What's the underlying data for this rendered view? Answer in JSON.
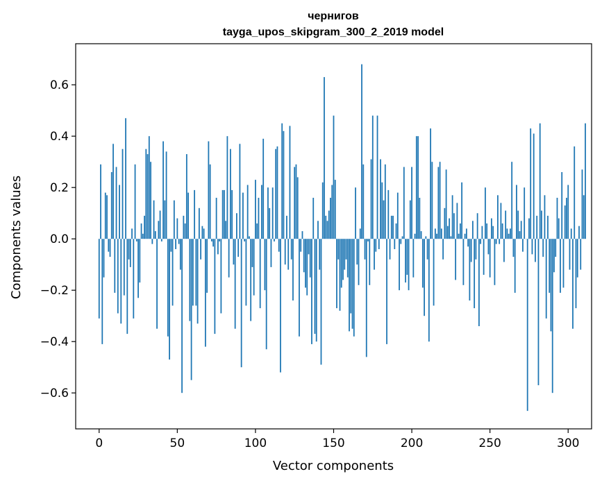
{
  "chart_data": {
    "type": "bar",
    "title": "чернигов",
    "subtitle": "tayga_upos_skipgram_300_2_2019 model",
    "xlabel": "Vector components",
    "ylabel": "Components values",
    "xlim": [
      -15,
      315
    ],
    "ylim": [
      -0.74,
      0.76
    ],
    "x_ticks": [
      0,
      50,
      100,
      150,
      200,
      250,
      300
    ],
    "y_ticks": [
      -0.6,
      -0.4,
      -0.2,
      0.0,
      0.2,
      0.4,
      0.6
    ],
    "y_tick_labels": [
      "−0.6",
      "−0.4",
      "−0.2",
      "0.0",
      "0.2",
      "0.4",
      "0.6"
    ],
    "grid": false,
    "bar_color": "#1f77b4",
    "values": [
      -0.31,
      0.29,
      -0.41,
      -0.15,
      0.18,
      0.17,
      -0.05,
      -0.07,
      0.26,
      0.37,
      -0.21,
      0.28,
      -0.29,
      0.21,
      -0.33,
      0.35,
      -0.22,
      0.47,
      -0.37,
      -0.08,
      -0.11,
      0.04,
      -0.31,
      0.29,
      -0.01,
      -0.23,
      -0.17,
      0.06,
      0.02,
      0.09,
      0.35,
      0.33,
      0.4,
      0.3,
      -0.02,
      0.15,
      0.03,
      -0.35,
      0.07,
      0.11,
      -0.01,
      0.38,
      0.15,
      0.34,
      -0.38,
      -0.47,
      -0.05,
      -0.26,
      0.15,
      -0.04,
      0.08,
      -0.02,
      -0.12,
      -0.6,
      0.09,
      0.06,
      0.33,
      0.18,
      -0.32,
      -0.55,
      -0.26,
      0.19,
      -0.26,
      -0.33,
      0.12,
      -0.08,
      0.05,
      0.04,
      -0.42,
      -0.21,
      0.38,
      0.29,
      -0.01,
      -0.03,
      -0.37,
      0.16,
      -0.06,
      -0.01,
      -0.29,
      0.19,
      0.19,
      0.07,
      0.4,
      -0.15,
      0.35,
      0.19,
      -0.1,
      -0.35,
      0.1,
      -0.07,
      0.37,
      -0.5,
      0.18,
      -0.01,
      -0.26,
      0.21,
      0.01,
      -0.32,
      -0.11,
      -0.22,
      0.23,
      0.06,
      0.16,
      -0.27,
      0.21,
      0.39,
      -0.2,
      -0.43,
      0.2,
      0.12,
      -0.11,
      0.2,
      -0.01,
      0.35,
      0.36,
      -0.05,
      -0.52,
      0.45,
      0.42,
      -0.1,
      0.09,
      -0.12,
      0.44,
      -0.08,
      -0.24,
      0.28,
      0.29,
      0.24,
      -0.38,
      -0.05,
      0.03,
      -0.13,
      -0.19,
      -0.22,
      -0.06,
      -0.15,
      -0.41,
      0.16,
      -0.37,
      -0.4,
      0.07,
      -0.12,
      -0.49,
      0.22,
      0.63,
      0.09,
      0.07,
      0.11,
      0.16,
      0.21,
      0.48,
      0.23,
      -0.27,
      -0.08,
      -0.28,
      -0.19,
      -0.16,
      -0.12,
      -0.08,
      -0.15,
      -0.36,
      -0.29,
      -0.35,
      -0.38,
      0.2,
      -0.1,
      -0.18,
      0.04,
      0.68,
      0.29,
      -0.08,
      -0.46,
      -0.01,
      -0.18,
      0.31,
      0.48,
      -0.12,
      -0.05,
      0.48,
      -0.04,
      0.31,
      0.22,
      0.15,
      0.29,
      -0.41,
      0.19,
      -0.08,
      0.09,
      0.09,
      -0.04,
      0.06,
      0.18,
      -0.2,
      -0.02,
      0.01,
      0.28,
      -0.17,
      -0.14,
      -0.2,
      0.15,
      0.28,
      -0.15,
      0.02,
      0.4,
      0.4,
      0.16,
      0.03,
      -0.19,
      -0.3,
      0.01,
      -0.08,
      -0.4,
      0.43,
      0.3,
      -0.26,
      0.04,
      0.02,
      0.28,
      0.3,
      0.04,
      -0.08,
      0.12,
      0.27,
      0.05,
      0.08,
      0.01,
      0.17,
      0.1,
      -0.16,
      0.14,
      0.02,
      0.06,
      0.22,
      -0.18,
      0.02,
      0.04,
      -0.03,
      -0.24,
      -0.09,
      0.07,
      -0.27,
      -0.08,
      0.1,
      -0.34,
      -0.02,
      0.05,
      -0.14,
      0.2,
      0.06,
      -0.06,
      -0.15,
      0.08,
      0.05,
      -0.18,
      -0.02,
      0.17,
      -0.02,
      0.14,
      0.06,
      -0.09,
      0.11,
      0.04,
      0.02,
      0.04,
      0.3,
      -0.07,
      -0.21,
      0.21,
      0.11,
      0.03,
      0.07,
      -0.05,
      0.2,
      0.0,
      -0.67,
      0.08,
      0.43,
      -0.06,
      0.41,
      -0.09,
      0.09,
      -0.57,
      0.45,
      0.11,
      -0.07,
      0.17,
      -0.31,
      0.09,
      -0.21,
      -0.36,
      -0.6,
      -0.13,
      -0.07,
      0.16,
      0.08,
      -0.21,
      0.26,
      -0.19,
      0.13,
      0.16,
      0.21,
      -0.12,
      0.04,
      -0.35,
      0.36,
      -0.27,
      -0.15,
      0.05,
      -0.12,
      0.27,
      0.17,
      0.45
    ]
  }
}
